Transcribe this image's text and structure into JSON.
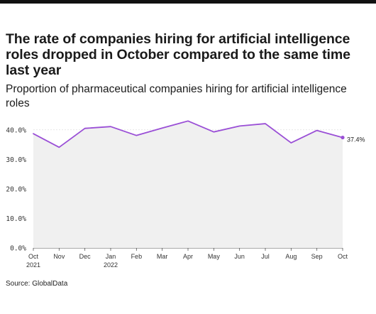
{
  "chart_data": {
    "type": "area",
    "title": "The rate of companies hiring for artificial intelligence roles dropped in October compared to the same time last year",
    "subtitle": "Proportion of pharmaceutical companies hiring for artificial intelligence roles",
    "xlabel": "",
    "ylabel": "",
    "x": [
      "Oct\n2021",
      "Nov",
      "Dec",
      "Jan\n2022",
      "Feb",
      "Mar",
      "Apr",
      "May",
      "Jun",
      "Jul",
      "Aug",
      "Sep",
      "Oct"
    ],
    "series": [
      {
        "values": [
          38.7,
          34.1,
          40.5,
          41.1,
          38.1,
          40.6,
          43.0,
          39.3,
          41.3,
          42.1,
          35.6,
          39.8,
          37.4
        ]
      }
    ],
    "ylim": [
      0,
      45
    ],
    "yticks": [
      0,
      10,
      20,
      30,
      40
    ],
    "ytick_labels": [
      "0.0%",
      "10.0%",
      "20.0%",
      "30.0%",
      "40.0%"
    ],
    "end_label": "37.4%",
    "grid": "horizontal",
    "colors": {
      "line": "#9a4fd6",
      "area": "#f0f0f0",
      "grid": "#dddddd"
    }
  },
  "source": "Source: GlobalData"
}
